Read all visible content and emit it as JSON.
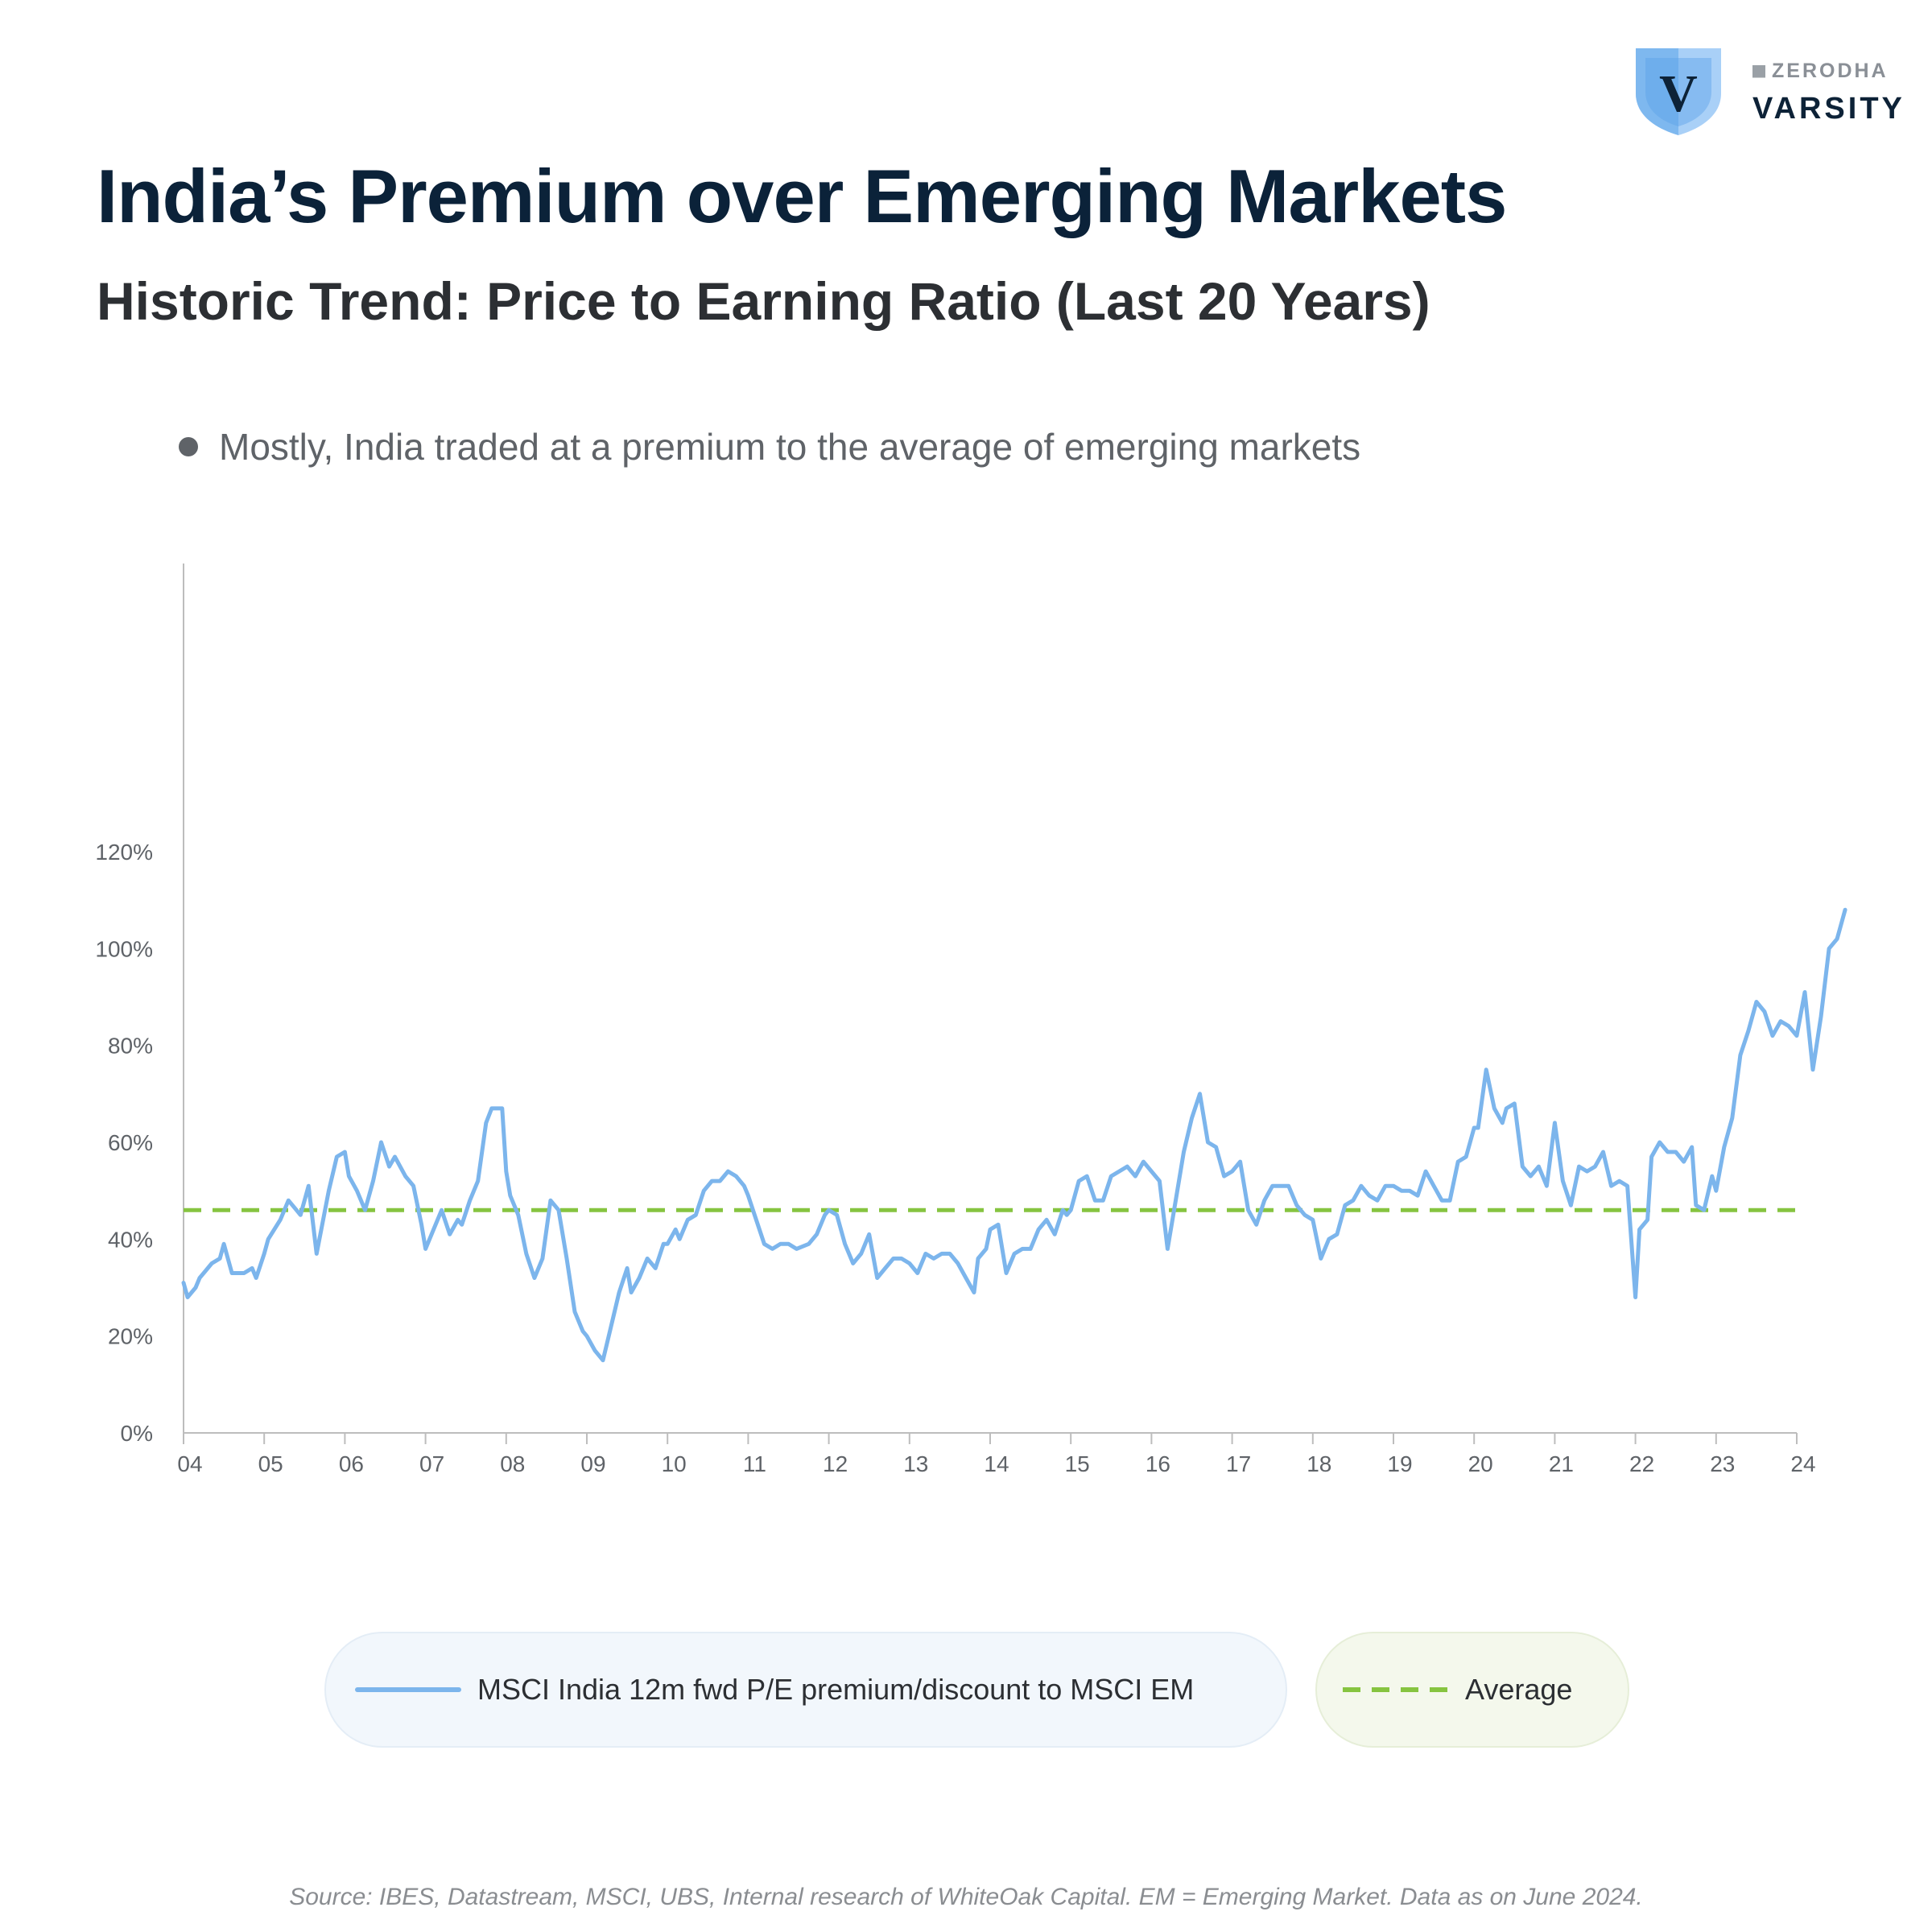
{
  "brand": {
    "shield_letter": "V",
    "small": "ZERODHA",
    "big": "VARSITY"
  },
  "title": "India’s Premium over Emerging Markets",
  "subtitle": "Historic Trend: Price to Earning Ratio (Last 20 Years)",
  "note": "Mostly, India traded at a premium to the average of emerging markets",
  "legend": {
    "india": "MSCI India 12m fwd P/E premium/discount to MSCI EM",
    "average": "Average"
  },
  "source": "Source: IBES, Datastream, MSCI, UBS, Internal research of WhiteOak Capital. EM = Emerging Market. Data as on June 2024.",
  "colors": {
    "series": "#7cb5ec",
    "average": "#86c440",
    "axis": "#bdbdbd",
    "tick_text": "#5f6368"
  },
  "chart_data": {
    "type": "line",
    "xlim": [
      2004,
      2024
    ],
    "ylim": [
      0,
      120
    ],
    "grid": false,
    "legend_position": "bottom",
    "x_tick_labels": [
      "04",
      "05",
      "06",
      "07",
      "08",
      "09",
      "10",
      "11",
      "12",
      "13",
      "14",
      "15",
      "16",
      "17",
      "18",
      "19",
      "20",
      "21",
      "22",
      "23",
      "24"
    ],
    "y_tick_labels": [
      "0%",
      "20%",
      "40%",
      "60%",
      "80%",
      "100%",
      "120%"
    ],
    "y_ticks": [
      0,
      20,
      40,
      60,
      80,
      100,
      120
    ],
    "average": 46,
    "series": [
      {
        "name": "MSCI India 12m fwd P/E premium/discount to MSCI EM",
        "points": [
          [
            2004.0,
            31
          ],
          [
            2004.05,
            28
          ],
          [
            2004.15,
            30
          ],
          [
            2004.2,
            32
          ],
          [
            2004.35,
            35
          ],
          [
            2004.45,
            36
          ],
          [
            2004.5,
            39
          ],
          [
            2004.6,
            33
          ],
          [
            2004.75,
            33
          ],
          [
            2004.85,
            34
          ],
          [
            2004.9,
            32
          ],
          [
            2005.0,
            37
          ],
          [
            2005.05,
            40
          ],
          [
            2005.2,
            44
          ],
          [
            2005.3,
            48
          ],
          [
            2005.4,
            46
          ],
          [
            2005.45,
            45
          ],
          [
            2005.55,
            51
          ],
          [
            2005.65,
            37
          ],
          [
            2005.8,
            50
          ],
          [
            2005.9,
            57
          ],
          [
            2006.0,
            58
          ],
          [
            2006.05,
            53
          ],
          [
            2006.15,
            50
          ],
          [
            2006.25,
            46
          ],
          [
            2006.35,
            52
          ],
          [
            2006.45,
            60
          ],
          [
            2006.55,
            55
          ],
          [
            2006.62,
            57
          ],
          [
            2006.75,
            53
          ],
          [
            2006.85,
            51
          ],
          [
            2006.95,
            43
          ],
          [
            2007.0,
            38
          ],
          [
            2007.1,
            42
          ],
          [
            2007.2,
            46
          ],
          [
            2007.3,
            41
          ],
          [
            2007.4,
            44
          ],
          [
            2007.45,
            43
          ],
          [
            2007.55,
            48
          ],
          [
            2007.65,
            52
          ],
          [
            2007.75,
            64
          ],
          [
            2007.82,
            67
          ],
          [
            2007.95,
            67
          ],
          [
            2008.0,
            54
          ],
          [
            2008.05,
            49
          ],
          [
            2008.15,
            45
          ],
          [
            2008.25,
            37
          ],
          [
            2008.35,
            32
          ],
          [
            2008.45,
            36
          ],
          [
            2008.55,
            48
          ],
          [
            2008.65,
            46
          ],
          [
            2008.75,
            36
          ],
          [
            2008.85,
            25
          ],
          [
            2008.95,
            21
          ],
          [
            2009.0,
            20
          ],
          [
            2009.1,
            17
          ],
          [
            2009.2,
            15
          ],
          [
            2009.3,
            22
          ],
          [
            2009.4,
            29
          ],
          [
            2009.5,
            34
          ],
          [
            2009.55,
            29
          ],
          [
            2009.65,
            32
          ],
          [
            2009.75,
            36
          ],
          [
            2009.85,
            34
          ],
          [
            2009.95,
            39
          ],
          [
            2010.0,
            39
          ],
          [
            2010.1,
            42
          ],
          [
            2010.15,
            40
          ],
          [
            2010.25,
            44
          ],
          [
            2010.35,
            45
          ],
          [
            2010.45,
            50
          ],
          [
            2010.55,
            52
          ],
          [
            2010.65,
            52
          ],
          [
            2010.75,
            54
          ],
          [
            2010.85,
            53
          ],
          [
            2010.95,
            51
          ],
          [
            2011.0,
            49
          ],
          [
            2011.1,
            44
          ],
          [
            2011.2,
            39
          ],
          [
            2011.3,
            38
          ],
          [
            2011.4,
            39
          ],
          [
            2011.5,
            39
          ],
          [
            2011.6,
            38
          ],
          [
            2011.75,
            39
          ],
          [
            2011.85,
            41
          ],
          [
            2011.95,
            45
          ],
          [
            2012.0,
            46
          ],
          [
            2012.1,
            45
          ],
          [
            2012.2,
            39
          ],
          [
            2012.3,
            35
          ],
          [
            2012.4,
            37
          ],
          [
            2012.5,
            41
          ],
          [
            2012.6,
            32
          ],
          [
            2012.7,
            34
          ],
          [
            2012.8,
            36
          ],
          [
            2012.9,
            36
          ],
          [
            2013.0,
            35
          ],
          [
            2013.1,
            33
          ],
          [
            2013.2,
            37
          ],
          [
            2013.3,
            36
          ],
          [
            2013.4,
            37
          ],
          [
            2013.5,
            37
          ],
          [
            2013.6,
            35
          ],
          [
            2013.7,
            32
          ],
          [
            2013.8,
            29
          ],
          [
            2013.85,
            36
          ],
          [
            2013.95,
            38
          ],
          [
            2014.0,
            42
          ],
          [
            2014.1,
            43
          ],
          [
            2014.2,
            33
          ],
          [
            2014.3,
            37
          ],
          [
            2014.4,
            38
          ],
          [
            2014.5,
            38
          ],
          [
            2014.6,
            42
          ],
          [
            2014.7,
            44
          ],
          [
            2014.8,
            41
          ],
          [
            2014.9,
            46
          ],
          [
            2014.95,
            45
          ],
          [
            2015.0,
            46
          ],
          [
            2015.1,
            52
          ],
          [
            2015.2,
            53
          ],
          [
            2015.3,
            48
          ],
          [
            2015.4,
            48
          ],
          [
            2015.5,
            53
          ],
          [
            2015.6,
            54
          ],
          [
            2015.7,
            55
          ],
          [
            2015.8,
            53
          ],
          [
            2015.9,
            56
          ],
          [
            2016.0,
            54
          ],
          [
            2016.1,
            52
          ],
          [
            2016.2,
            38
          ],
          [
            2016.3,
            48
          ],
          [
            2016.4,
            58
          ],
          [
            2016.5,
            65
          ],
          [
            2016.6,
            70
          ],
          [
            2016.7,
            60
          ],
          [
            2016.8,
            59
          ],
          [
            2016.9,
            53
          ],
          [
            2017.0,
            54
          ],
          [
            2017.1,
            56
          ],
          [
            2017.2,
            46
          ],
          [
            2017.3,
            43
          ],
          [
            2017.4,
            48
          ],
          [
            2017.5,
            51
          ],
          [
            2017.6,
            51
          ],
          [
            2017.7,
            51
          ],
          [
            2017.8,
            47
          ],
          [
            2017.9,
            45
          ],
          [
            2018.0,
            44
          ],
          [
            2018.1,
            36
          ],
          [
            2018.2,
            40
          ],
          [
            2018.3,
            41
          ],
          [
            2018.4,
            47
          ],
          [
            2018.5,
            48
          ],
          [
            2018.6,
            51
          ],
          [
            2018.7,
            49
          ],
          [
            2018.8,
            48
          ],
          [
            2018.9,
            51
          ],
          [
            2019.0,
            51
          ],
          [
            2019.1,
            50
          ],
          [
            2019.2,
            50
          ],
          [
            2019.3,
            49
          ],
          [
            2019.4,
            54
          ],
          [
            2019.5,
            51
          ],
          [
            2019.6,
            48
          ],
          [
            2019.7,
            48
          ],
          [
            2019.8,
            56
          ],
          [
            2019.9,
            57
          ],
          [
            2020.0,
            63
          ],
          [
            2020.05,
            63
          ],
          [
            2020.15,
            75
          ],
          [
            2020.25,
            67
          ],
          [
            2020.35,
            64
          ],
          [
            2020.4,
            67
          ],
          [
            2020.5,
            68
          ],
          [
            2020.6,
            55
          ],
          [
            2020.7,
            53
          ],
          [
            2020.8,
            55
          ],
          [
            2020.9,
            51
          ],
          [
            2021.0,
            64
          ],
          [
            2021.1,
            52
          ],
          [
            2021.2,
            47
          ],
          [
            2021.3,
            55
          ],
          [
            2021.4,
            54
          ],
          [
            2021.5,
            55
          ],
          [
            2021.6,
            58
          ],
          [
            2021.7,
            51
          ],
          [
            2021.8,
            52
          ],
          [
            2021.9,
            51
          ],
          [
            2022.0,
            28
          ],
          [
            2022.05,
            42
          ],
          [
            2022.15,
            44
          ],
          [
            2022.2,
            57
          ],
          [
            2022.3,
            60
          ],
          [
            2022.4,
            58
          ],
          [
            2022.5,
            58
          ],
          [
            2022.6,
            56
          ],
          [
            2022.7,
            59
          ],
          [
            2022.75,
            47
          ],
          [
            2022.85,
            46
          ],
          [
            2022.95,
            53
          ],
          [
            2023.0,
            50
          ],
          [
            2023.1,
            59
          ],
          [
            2023.2,
            65
          ],
          [
            2023.3,
            78
          ],
          [
            2023.4,
            83
          ],
          [
            2023.5,
            89
          ],
          [
            2023.6,
            87
          ],
          [
            2023.7,
            82
          ],
          [
            2023.8,
            85
          ],
          [
            2023.9,
            84
          ],
          [
            2024.0,
            82
          ],
          [
            2024.1,
            91
          ],
          [
            2024.2,
            75
          ],
          [
            2024.3,
            86
          ],
          [
            2024.4,
            100
          ],
          [
            2024.5,
            102
          ],
          [
            2024.6,
            108
          ]
        ]
      }
    ]
  }
}
